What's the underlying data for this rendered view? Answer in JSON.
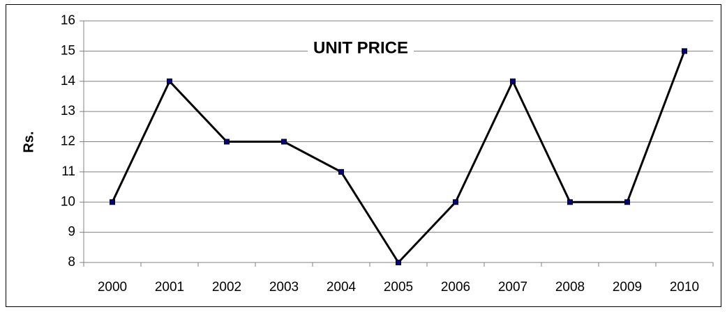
{
  "chart_data": {
    "type": "line",
    "title": "UNIT PRICE",
    "ylabel": "Rs.",
    "categories": [
      "2000",
      "2001",
      "2002",
      "2003",
      "2004",
      "2005",
      "2006",
      "2007",
      "2008",
      "2009",
      "2010"
    ],
    "values": [
      10,
      14,
      12,
      12,
      11,
      8,
      10,
      14,
      10,
      10,
      15
    ],
    "color": "#000000",
    "marker_color": "#000080",
    "ylim": [
      8,
      16
    ],
    "yticks": [
      8,
      9,
      10,
      11,
      12,
      13,
      14,
      15,
      16
    ],
    "grid": true
  }
}
